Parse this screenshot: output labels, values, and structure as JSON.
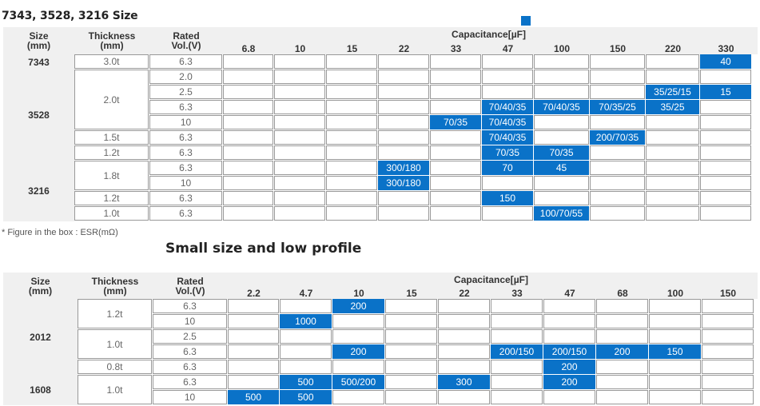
{
  "title_1": "7343, 3528, 3216 Size",
  "title_2": "Small size and low profile",
  "footnote": "* Figure in the box : ESR(mΩ)",
  "legend_color": "#0a72c8",
  "headers": {
    "size": "Size",
    "size_unit": "(mm)",
    "thickness": "Thickness",
    "thickness_unit": "(mm)",
    "rated": "Rated",
    "rated_unit": "Vol.(V)",
    "capacitance": "Capacitance[µF]"
  },
  "table1": {
    "caps": [
      "6.8",
      "10",
      "15",
      "22",
      "33",
      "47",
      "100",
      "150",
      "220",
      "330"
    ],
    "sizes": [
      {
        "label": "7343",
        "start": 0,
        "span": 1
      },
      {
        "label": "3528",
        "start": 1,
        "span": 6
      },
      {
        "label": "3216",
        "start": 7,
        "span": 4
      }
    ],
    "thicknesses": [
      {
        "label": "3.0t",
        "start": 0,
        "span": 1
      },
      {
        "label": "2.0t",
        "start": 1,
        "span": 4
      },
      {
        "label": "1.5t",
        "start": 5,
        "span": 1
      },
      {
        "label": "1.2t",
        "start": 6,
        "span": 1
      },
      {
        "label": "1.8t",
        "start": 7,
        "span": 2
      },
      {
        "label": "1.2t",
        "start": 9,
        "span": 1
      },
      {
        "label": "1.0t",
        "start": 10,
        "span": 1
      }
    ],
    "rows": [
      {
        "volt": "6.3",
        "cells": [
          "",
          "",
          "",
          "",
          "",
          "",
          "",
          "",
          "",
          "40"
        ]
      },
      {
        "volt": "2.0",
        "cells": [
          "",
          "",
          "",
          "",
          "",
          "",
          "",
          "",
          "",
          ""
        ]
      },
      {
        "volt": "2.5",
        "cells": [
          "",
          "",
          "",
          "",
          "",
          "",
          "",
          "",
          "35/25/15",
          "15"
        ]
      },
      {
        "volt": "6.3",
        "cells": [
          "",
          "",
          "",
          "",
          "",
          "70/40/35",
          "70/40/35",
          "70/35/25",
          "35/25",
          ""
        ]
      },
      {
        "volt": "10",
        "cells": [
          "",
          "",
          "",
          "",
          "70/35",
          "70/40/35",
          "",
          "",
          "",
          ""
        ]
      },
      {
        "volt": "6.3",
        "cells": [
          "",
          "",
          "",
          "",
          "",
          "70/40/35",
          "",
          "200/70/35",
          "",
          ""
        ]
      },
      {
        "volt": "6.3",
        "cells": [
          "",
          "",
          "",
          "",
          "",
          "70/35",
          "70/35",
          "",
          "",
          ""
        ]
      },
      {
        "volt": "6.3",
        "cells": [
          "",
          "",
          "",
          "300/180",
          "",
          "70",
          "45",
          "",
          "",
          ""
        ]
      },
      {
        "volt": "10",
        "cells": [
          "",
          "",
          "",
          "300/180",
          "",
          "",
          "",
          "",
          "",
          ""
        ]
      },
      {
        "volt": "6.3",
        "cells": [
          "",
          "",
          "",
          "",
          "",
          "150",
          "",
          "",
          "",
          ""
        ]
      },
      {
        "volt": "6.3",
        "cells": [
          "",
          "",
          "",
          "",
          "",
          "",
          "100/70/55",
          "",
          "",
          ""
        ]
      }
    ]
  },
  "table2": {
    "caps": [
      "2.2",
      "4.7",
      "10",
      "15",
      "22",
      "33",
      "47",
      "68",
      "100",
      "150"
    ],
    "sizes": [
      {
        "label": "2012",
        "start": 0,
        "span": 5
      },
      {
        "label": "1608",
        "start": 5,
        "span": 2
      }
    ],
    "thicknesses": [
      {
        "label": "1.2t",
        "start": 0,
        "span": 2
      },
      {
        "label": "1.0t",
        "start": 2,
        "span": 2
      },
      {
        "label": "0.8t",
        "start": 4,
        "span": 1
      },
      {
        "label": "1.0t",
        "start": 5,
        "span": 2
      }
    ],
    "rows": [
      {
        "volt": "6.3",
        "cells": [
          "",
          "",
          "200",
          "",
          "",
          "",
          "",
          "",
          "",
          ""
        ]
      },
      {
        "volt": "10",
        "cells": [
          "",
          "1000",
          "",
          "",
          "",
          "",
          "",
          "",
          "",
          ""
        ]
      },
      {
        "volt": "2.5",
        "cells": [
          "",
          "",
          "",
          "",
          "",
          "",
          "",
          "",
          "",
          ""
        ]
      },
      {
        "volt": "6.3",
        "cells": [
          "",
          "",
          "200",
          "",
          "",
          "200/150",
          "200/150",
          "200",
          "150",
          ""
        ]
      },
      {
        "volt": "6.3",
        "cells": [
          "",
          "",
          "",
          "",
          "",
          "",
          "200",
          "",
          "",
          ""
        ]
      },
      {
        "volt": "6.3",
        "cells": [
          "",
          "500",
          "500/200",
          "",
          "300",
          "",
          "200",
          "",
          "",
          ""
        ]
      },
      {
        "volt": "10",
        "cells": [
          "500",
          "500",
          "",
          "",
          "",
          "",
          "",
          "",
          "",
          ""
        ]
      }
    ]
  }
}
